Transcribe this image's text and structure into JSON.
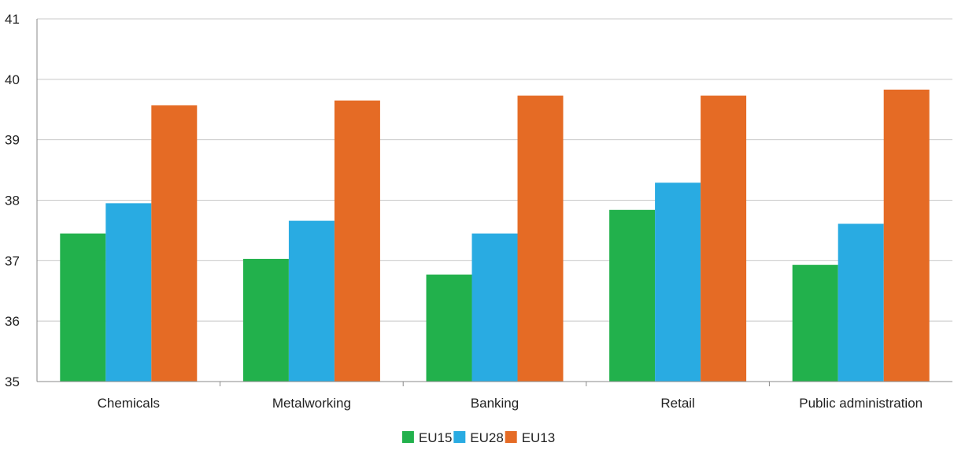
{
  "chart_data": {
    "type": "bar",
    "title": "",
    "xlabel": "",
    "ylabel": "",
    "categories": [
      "Chemicals",
      "Metalworking",
      "Banking",
      "Retail",
      "Public administration"
    ],
    "series": [
      {
        "name": "EU15",
        "color": "#22b14c",
        "values": [
          37.45,
          37.03,
          36.77,
          37.84,
          36.93
        ]
      },
      {
        "name": "EU28",
        "color": "#29abe2",
        "values": [
          37.95,
          37.66,
          37.45,
          38.29,
          37.61
        ]
      },
      {
        "name": "EU13",
        "color": "#e56b25",
        "values": [
          39.57,
          39.65,
          39.73,
          39.73,
          39.83
        ]
      }
    ],
    "ylim": [
      35,
      41
    ],
    "yticks": [
      35,
      36,
      37,
      38,
      39,
      40,
      41
    ],
    "grid": true,
    "legend_position": "bottom-center",
    "colors": {
      "grid": "#c8c8c8",
      "axis": "#888888",
      "text": "#222222"
    }
  }
}
